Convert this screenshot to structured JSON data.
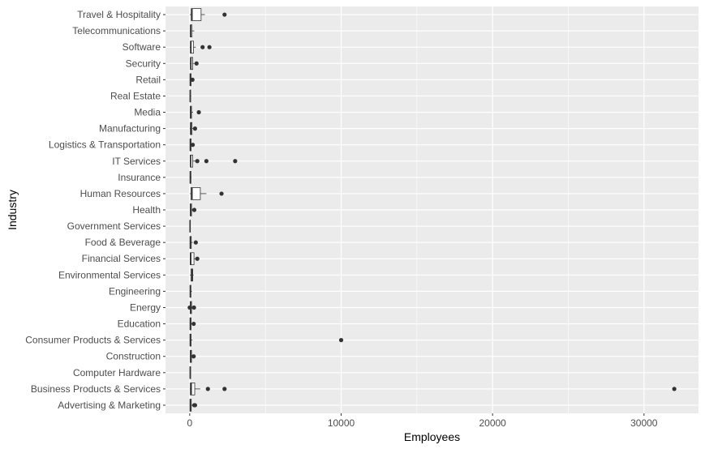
{
  "chart_data": {
    "type": "boxplot",
    "orientation": "horizontal",
    "xlabel": "Employees",
    "ylabel": "Industry",
    "xlim": [
      -1600,
      33600
    ],
    "x_ticks": [
      0,
      10000,
      20000,
      30000
    ],
    "x_tick_labels": [
      "0",
      "10000",
      "20000",
      "30000"
    ],
    "grid": true,
    "background": "#EBEBEB",
    "grid_color": "#FFFFFF",
    "box_fill": "#FFFFFF",
    "line_color": "#333333",
    "categories": [
      {
        "name": "Advertising & Marketing",
        "min": 5,
        "q1": 20,
        "median": 40,
        "q3": 100,
        "max": 200,
        "outliers": [
          300,
          350
        ]
      },
      {
        "name": "Business Products & Services",
        "min": 5,
        "q1": 40,
        "median": 100,
        "q3": 330,
        "max": 700,
        "outliers": [
          1200,
          2300,
          32000
        ]
      },
      {
        "name": "Computer Hardware",
        "min": 10,
        "q1": 20,
        "median": 30,
        "q3": 60,
        "max": 90,
        "outliers": []
      },
      {
        "name": "Construction",
        "min": 5,
        "q1": 30,
        "median": 60,
        "q3": 120,
        "max": 200,
        "outliers": [
          260
        ]
      },
      {
        "name": "Consumer Products & Services",
        "min": 5,
        "q1": 20,
        "median": 40,
        "q3": 90,
        "max": 180,
        "outliers": [
          10000
        ]
      },
      {
        "name": "Education",
        "min": 5,
        "q1": 20,
        "median": 40,
        "q3": 90,
        "max": 170,
        "outliers": [
          260
        ]
      },
      {
        "name": "Energy",
        "min": 5,
        "q1": 30,
        "median": 60,
        "q3": 120,
        "max": 200,
        "outliers": [
          0,
          280
        ]
      },
      {
        "name": "Engineering",
        "min": 5,
        "q1": 20,
        "median": 40,
        "q3": 80,
        "max": 150,
        "outliers": []
      },
      {
        "name": "Environmental Services",
        "min": 10,
        "q1": 80,
        "median": 150,
        "q3": 200,
        "max": 260,
        "outliers": []
      },
      {
        "name": "Financial Services",
        "min": 5,
        "q1": 30,
        "median": 70,
        "q3": 280,
        "max": 400,
        "outliers": [
          500
        ]
      },
      {
        "name": "Food & Beverage",
        "min": 5,
        "q1": 20,
        "median": 40,
        "q3": 100,
        "max": 200,
        "outliers": [
          400
        ]
      },
      {
        "name": "Government Services",
        "min": 5,
        "q1": 10,
        "median": 20,
        "q3": 40,
        "max": 60,
        "outliers": []
      },
      {
        "name": "Health",
        "min": 5,
        "q1": 30,
        "median": 60,
        "q3": 120,
        "max": 220,
        "outliers": [
          300
        ]
      },
      {
        "name": "Human Resources",
        "min": 10,
        "q1": 80,
        "median": 150,
        "q3": 700,
        "max": 1100,
        "outliers": [
          2100
        ]
      },
      {
        "name": "Insurance",
        "min": 5,
        "q1": 20,
        "median": 40,
        "q3": 80,
        "max": 120,
        "outliers": []
      },
      {
        "name": "IT Services",
        "min": 5,
        "q1": 30,
        "median": 60,
        "q3": 200,
        "max": 400,
        "outliers": [
          500,
          1100,
          3000
        ]
      },
      {
        "name": "Logistics & Transportation",
        "min": 5,
        "q1": 20,
        "median": 40,
        "q3": 90,
        "max": 160,
        "outliers": [
          200
        ]
      },
      {
        "name": "Manufacturing",
        "min": 5,
        "q1": 40,
        "median": 80,
        "q3": 150,
        "max": 250,
        "outliers": [
          350
        ]
      },
      {
        "name": "Media",
        "min": 5,
        "q1": 30,
        "median": 60,
        "q3": 120,
        "max": 220,
        "outliers": [
          600
        ]
      },
      {
        "name": "Real Estate",
        "min": 5,
        "q1": 20,
        "median": 30,
        "q3": 60,
        "max": 100,
        "outliers": []
      },
      {
        "name": "Retail",
        "min": 5,
        "q1": 20,
        "median": 40,
        "q3": 90,
        "max": 150,
        "outliers": [
          180
        ]
      },
      {
        "name": "Security",
        "min": 5,
        "q1": 40,
        "median": 80,
        "q3": 200,
        "max": 300,
        "outliers": [
          450
        ]
      },
      {
        "name": "Software",
        "min": 5,
        "q1": 40,
        "median": 80,
        "q3": 250,
        "max": 400,
        "outliers": [
          850,
          1300
        ]
      },
      {
        "name": "Telecommunications",
        "min": 5,
        "q1": 30,
        "median": 60,
        "q3": 150,
        "max": 300,
        "outliers": []
      },
      {
        "name": "Travel & Hospitality",
        "min": 10,
        "q1": 100,
        "median": 150,
        "q3": 750,
        "max": 1000,
        "outliers": [
          2300
        ]
      }
    ]
  }
}
